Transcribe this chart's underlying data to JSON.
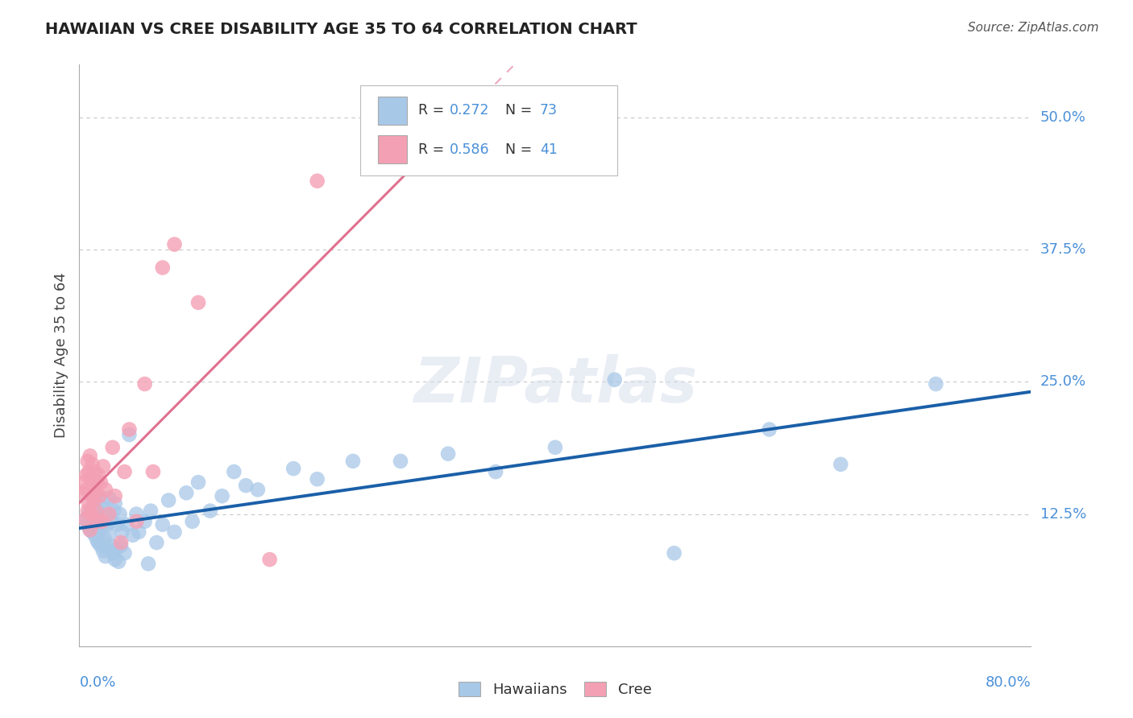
{
  "title": "HAWAIIAN VS CREE DISABILITY AGE 35 TO 64 CORRELATION CHART",
  "source": "Source: ZipAtlas.com",
  "ylabel": "Disability Age 35 to 64",
  "ytick_labels": [
    "12.5%",
    "25.0%",
    "37.5%",
    "50.0%"
  ],
  "ytick_values": [
    0.125,
    0.25,
    0.375,
    0.5
  ],
  "xlim": [
    0.0,
    0.8
  ],
  "ylim": [
    0.0,
    0.55
  ],
  "legend_hawaiians": "Hawaiians",
  "legend_cree": "Cree",
  "hawaiian_R": "0.272",
  "hawaiian_N": "73",
  "cree_R": "0.586",
  "cree_N": "41",
  "hawaiian_color": "#a8c8e8",
  "cree_color": "#f4a0b4",
  "hawaiian_line_color": "#1a5fa8",
  "cree_line_color": "#e07090",
  "background_color": "#ffffff",
  "grid_color": "#c8c8c8",
  "axis_label_color": "#4a90d9",
  "title_color": "#222222",
  "source_color": "#555555",
  "watermark_text": "ZIPatlas",
  "hawaiian_x": [
    0.005,
    0.007,
    0.008,
    0.009,
    0.01,
    0.01,
    0.011,
    0.012,
    0.013,
    0.013,
    0.014,
    0.015,
    0.015,
    0.016,
    0.016,
    0.017,
    0.018,
    0.018,
    0.019,
    0.02,
    0.02,
    0.021,
    0.022,
    0.022,
    0.023,
    0.024,
    0.025,
    0.025,
    0.026,
    0.027,
    0.028,
    0.029,
    0.03,
    0.03,
    0.031,
    0.032,
    0.033,
    0.034,
    0.035,
    0.036,
    0.038,
    0.04,
    0.042,
    0.045,
    0.048,
    0.05,
    0.055,
    0.058,
    0.06,
    0.065,
    0.07,
    0.075,
    0.08,
    0.09,
    0.095,
    0.1,
    0.11,
    0.12,
    0.13,
    0.14,
    0.15,
    0.18,
    0.2,
    0.23,
    0.27,
    0.31,
    0.35,
    0.4,
    0.45,
    0.5,
    0.58,
    0.64,
    0.72
  ],
  "hawaiian_y": [
    0.12,
    0.115,
    0.125,
    0.11,
    0.118,
    0.13,
    0.108,
    0.122,
    0.105,
    0.135,
    0.112,
    0.1,
    0.128,
    0.098,
    0.14,
    0.11,
    0.095,
    0.132,
    0.115,
    0.09,
    0.138,
    0.102,
    0.085,
    0.125,
    0.115,
    0.092,
    0.105,
    0.14,
    0.095,
    0.118,
    0.088,
    0.128,
    0.082,
    0.135,
    0.092,
    0.115,
    0.08,
    0.125,
    0.095,
    0.108,
    0.088,
    0.115,
    0.2,
    0.105,
    0.125,
    0.108,
    0.118,
    0.078,
    0.128,
    0.098,
    0.115,
    0.138,
    0.108,
    0.145,
    0.118,
    0.155,
    0.128,
    0.142,
    0.165,
    0.152,
    0.148,
    0.168,
    0.158,
    0.175,
    0.175,
    0.182,
    0.165,
    0.188,
    0.252,
    0.088,
    0.205,
    0.172,
    0.248
  ],
  "cree_x": [
    0.003,
    0.004,
    0.005,
    0.006,
    0.006,
    0.007,
    0.007,
    0.008,
    0.008,
    0.009,
    0.009,
    0.01,
    0.01,
    0.011,
    0.011,
    0.012,
    0.013,
    0.013,
    0.014,
    0.015,
    0.015,
    0.016,
    0.017,
    0.018,
    0.019,
    0.02,
    0.022,
    0.025,
    0.028,
    0.03,
    0.035,
    0.038,
    0.042,
    0.048,
    0.055,
    0.062,
    0.07,
    0.08,
    0.1,
    0.16,
    0.2
  ],
  "cree_y": [
    0.145,
    0.155,
    0.12,
    0.148,
    0.162,
    0.128,
    0.175,
    0.135,
    0.165,
    0.11,
    0.18,
    0.125,
    0.158,
    0.142,
    0.172,
    0.138,
    0.148,
    0.165,
    0.128,
    0.155,
    0.118,
    0.162,
    0.142,
    0.155,
    0.118,
    0.17,
    0.148,
    0.125,
    0.188,
    0.142,
    0.098,
    0.165,
    0.205,
    0.118,
    0.248,
    0.165,
    0.358,
    0.38,
    0.325,
    0.082,
    0.44
  ]
}
